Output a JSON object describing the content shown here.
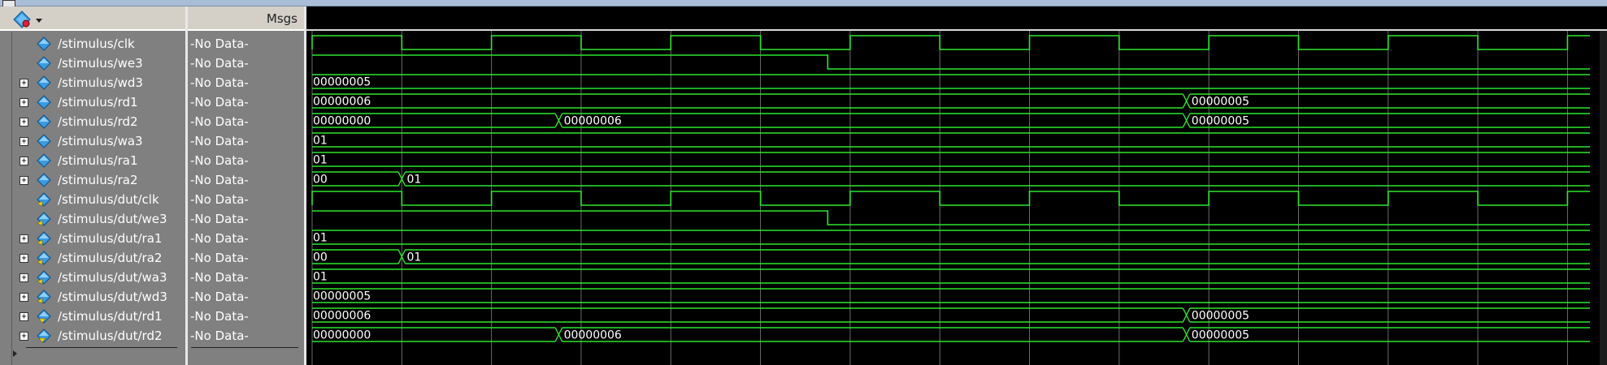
{
  "name_header": {
    "icon": "signal-dropdown-icon"
  },
  "msgs_header": {
    "title": "Msgs"
  },
  "signals": [
    {
      "name": "/stimulus/clk",
      "msg": "-No Data-",
      "expandable": false,
      "icon": "input-signal-icon",
      "kind": "clock",
      "start": "low"
    },
    {
      "name": "/stimulus/we3",
      "msg": "-No Data-",
      "expandable": false,
      "icon": "input-signal-icon",
      "kind": "bit",
      "start": "high",
      "transitions": [
        57.5
      ]
    },
    {
      "name": "/stimulus/wd3",
      "msg": "-No Data-",
      "expandable": true,
      "icon": "input-signal-icon",
      "kind": "bus",
      "segments": [
        {
          "at": 0,
          "value": "00000005"
        }
      ]
    },
    {
      "name": "/stimulus/rd1",
      "msg": "-No Data-",
      "expandable": true,
      "icon": "input-signal-icon",
      "kind": "bus",
      "segments": [
        {
          "at": 0,
          "value": "00000006"
        },
        {
          "at": 97.5,
          "value": "00000005"
        }
      ]
    },
    {
      "name": "/stimulus/rd2",
      "msg": "-No Data-",
      "expandable": true,
      "icon": "input-signal-icon",
      "kind": "bus",
      "segments": [
        {
          "at": 0,
          "value": "00000000"
        },
        {
          "at": 27.5,
          "value": "00000006"
        },
        {
          "at": 97.5,
          "value": "00000005"
        }
      ]
    },
    {
      "name": "/stimulus/wa3",
      "msg": "-No Data-",
      "expandable": true,
      "icon": "input-signal-icon",
      "kind": "bus",
      "segments": [
        {
          "at": 0,
          "value": "01"
        }
      ]
    },
    {
      "name": "/stimulus/ra1",
      "msg": "-No Data-",
      "expandable": true,
      "icon": "input-signal-icon",
      "kind": "bus",
      "segments": [
        {
          "at": 0,
          "value": "01"
        }
      ]
    },
    {
      "name": "/stimulus/ra2",
      "msg": "-No Data-",
      "expandable": true,
      "icon": "input-signal-icon",
      "kind": "bus",
      "segments": [
        {
          "at": 0,
          "value": "00"
        },
        {
          "at": 10,
          "value": "01"
        }
      ]
    },
    {
      "name": "/stimulus/dut/clk",
      "msg": "-No Data-",
      "expandable": false,
      "icon": "dut-signal-icon",
      "kind": "clock",
      "start": "low"
    },
    {
      "name": "/stimulus/dut/we3",
      "msg": "-No Data-",
      "expandable": false,
      "icon": "dut-signal-icon",
      "kind": "bit",
      "start": "high",
      "transitions": [
        57.5
      ]
    },
    {
      "name": "/stimulus/dut/ra1",
      "msg": "-No Data-",
      "expandable": true,
      "icon": "dut-signal-icon",
      "kind": "bus",
      "segments": [
        {
          "at": 0,
          "value": "01"
        }
      ]
    },
    {
      "name": "/stimulus/dut/ra2",
      "msg": "-No Data-",
      "expandable": true,
      "icon": "dut-signal-icon",
      "kind": "bus",
      "segments": [
        {
          "at": 0,
          "value": "00"
        },
        {
          "at": 10,
          "value": "01"
        }
      ]
    },
    {
      "name": "/stimulus/dut/wa3",
      "msg": "-No Data-",
      "expandable": true,
      "icon": "dut-signal-icon",
      "kind": "bus",
      "segments": [
        {
          "at": 0,
          "value": "01"
        }
      ]
    },
    {
      "name": "/stimulus/dut/wd3",
      "msg": "-No Data-",
      "expandable": true,
      "icon": "dut-signal-icon",
      "kind": "bus",
      "segments": [
        {
          "at": 0,
          "value": "00000005"
        }
      ]
    },
    {
      "name": "/stimulus/dut/rd1",
      "msg": "-No Data-",
      "expandable": true,
      "icon": "dut-output-signal-icon",
      "kind": "bus",
      "segments": [
        {
          "at": 0,
          "value": "00000006"
        },
        {
          "at": 97.5,
          "value": "00000005"
        }
      ]
    },
    {
      "name": "/stimulus/dut/rd2",
      "msg": "-No Data-",
      "expandable": true,
      "icon": "dut-output-signal-icon",
      "kind": "bus",
      "segments": [
        {
          "at": 0,
          "value": "00000000"
        },
        {
          "at": 27.5,
          "value": "00000006"
        },
        {
          "at": 97.5,
          "value": "00000005"
        }
      ]
    }
  ],
  "timing": {
    "clock_half_period": 10,
    "clock_first_edge": 0,
    "visible_time": 142.5,
    "bus_edge_time": 10
  },
  "colors": {
    "wave": "#2ee62e",
    "grid": "#6b6b6b",
    "wave_bg": "#000000",
    "text": "#ffffff",
    "panel_bg": "#808080",
    "icon_blue": "#3a9be0",
    "icon_yellow": "#e8d21a"
  }
}
